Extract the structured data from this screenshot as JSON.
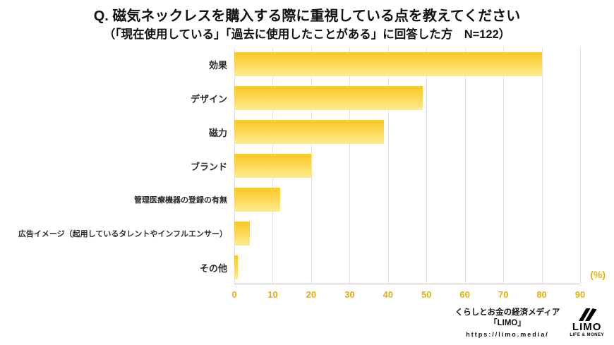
{
  "title": "Q. 磁気ネックレスを購入する際に重視している点を教えてください",
  "subtitle": "（「現在使用している」「過去に使用したことがある」に回答した方　N=122）",
  "chart_data": {
    "type": "bar",
    "orientation": "horizontal",
    "title": "Q. 磁気ネックレスを購入する際に重視している点を教えてください",
    "subtitle": "（「現在使用している」「過去に使用したことがある」に回答した方　N=122）",
    "categories": [
      "効果",
      "デザイン",
      "磁力",
      "ブランド",
      "管理医療機器の登録の有無",
      "広告イメージ（起用しているタレントやインフルエンサー）",
      "その他"
    ],
    "values": [
      80,
      49,
      39,
      20,
      12,
      4,
      1
    ],
    "xlim": [
      0,
      90
    ],
    "xticks": [
      0,
      10,
      20,
      30,
      40,
      50,
      60,
      70,
      80,
      90
    ],
    "unit_label": "(%)",
    "grid": true,
    "bar_color_top": "#fbc926",
    "bar_color_bottom": "#fdeb92",
    "tick_color": "#eab008"
  },
  "footer": {
    "source_line1": "くらしとお金の経済メディア",
    "source_line2": "「LIMO」",
    "url": "https://limo.media/",
    "logo_text": "LIMO",
    "logo_sub": "LIFE & MONEY"
  }
}
